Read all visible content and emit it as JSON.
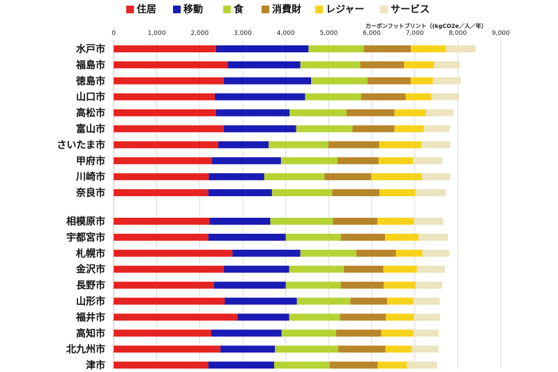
{
  "chart_data": {
    "type": "bar",
    "orientation": "horizontal",
    "stacked": true,
    "xlabel": "カーボンフットプリント（(kgCO2e／人／年）",
    "xlim": [
      0,
      9000
    ],
    "xticks": [
      "0",
      "1,000",
      "2,000",
      "3,000",
      "4,000",
      "5,000",
      "6,000",
      "7,000",
      "8,000",
      "9,000"
    ],
    "xtick_values": [
      0,
      1000,
      2000,
      3000,
      4000,
      5000,
      6000,
      7000,
      8000,
      9000
    ],
    "legend_position": "top",
    "grid": true,
    "groups": [
      {
        "categories": [
          "水戸市",
          "福島市",
          "徳島市",
          "山口市",
          "高松市",
          "富山市",
          "さいたま市",
          "甲府市",
          "川崎市",
          "奈良市"
        ],
        "series": [
          {
            "name": "住居",
            "color": "#e52320",
            "values": [
              2380,
              2660,
              2560,
              2350,
              2380,
              2560,
              2430,
              2280,
              2210,
              2200
            ]
          },
          {
            "name": "移動",
            "color": "#1a1ab4",
            "values": [
              2150,
              1680,
              2030,
              2100,
              1710,
              1680,
              1170,
              1610,
              1290,
              1480
            ]
          },
          {
            "name": "食",
            "color": "#b5d334",
            "values": [
              1280,
              1390,
              1310,
              1300,
              1320,
              1310,
              1390,
              1310,
              1400,
              1400
            ]
          },
          {
            "name": "消費財",
            "color": "#b8862a",
            "values": [
              1100,
              1020,
              1000,
              1040,
              1120,
              980,
              1180,
              960,
              1090,
              1100
            ]
          },
          {
            "name": "レジャー",
            "color": "#f7d21b",
            "values": [
              820,
              700,
              520,
              600,
              730,
              680,
              980,
              800,
              1180,
              830
            ]
          },
          {
            "name": "サービス",
            "color": "#ebe4be",
            "values": [
              680,
              600,
              650,
              640,
              640,
              600,
              670,
              680,
              650,
              720
            ]
          }
        ]
      },
      {
        "categories": [
          "相模原市",
          "宇都宮市",
          "札幌市",
          "金沢市",
          "長野市",
          "山形市",
          "福井市",
          "高知市",
          "北九州市",
          "津市"
        ],
        "series": [
          {
            "name": "住居",
            "color": "#e52320",
            "values": [
              2230,
              2200,
              2760,
              2560,
              2330,
              2580,
              2880,
              2270,
              2480,
              2200
            ]
          },
          {
            "name": "移動",
            "color": "#1a1ab4",
            "values": [
              1410,
              1800,
              1580,
              1520,
              1670,
              1680,
              1200,
              1630,
              1270,
              1530
            ]
          },
          {
            "name": "食",
            "color": "#b5d334",
            "values": [
              1460,
              1280,
              1300,
              1270,
              1280,
              1240,
              1180,
              1270,
              1470,
              1290
            ]
          },
          {
            "name": "消費財",
            "color": "#b8862a",
            "values": [
              1030,
              1030,
              920,
              920,
              1000,
              860,
              1070,
              1050,
              1100,
              1120
            ]
          },
          {
            "name": "レジャー",
            "color": "#f7d21b",
            "values": [
              850,
              780,
              620,
              780,
              740,
              610,
              650,
              740,
              610,
              680
            ]
          },
          {
            "name": "サービス",
            "color": "#ebe4be",
            "values": [
              680,
              680,
              620,
              650,
              620,
              610,
              610,
              600,
              620,
              700
            ]
          }
        ]
      }
    ]
  }
}
